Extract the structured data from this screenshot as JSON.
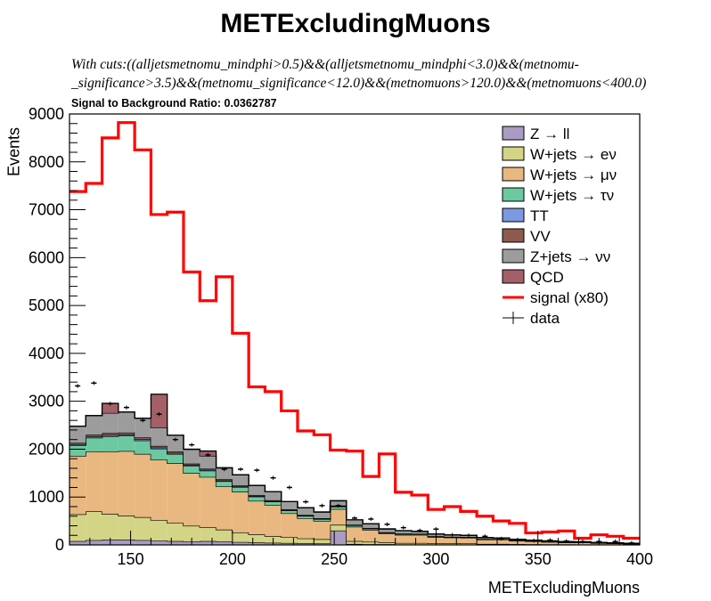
{
  "chart_data": {
    "type": "stacked-histogram",
    "title": "METExcludingMuons",
    "cut_line1": "With cuts:((alljetsmetnomu_mindphi>0.5)&&(alljetsmetnomu_mindphi<3.0)&&(metnomu-",
    "cut_line2": "_significance>3.5)&&(metnomu_significance<12.0)&&(metnomuons>120.0)&&(metnomuons<400.0)",
    "sb_ratio": "Signal to Background Ratio: 0.0362787",
    "xlabel": "METExcludingMuons",
    "ylabel": "Events",
    "xlim": [
      120,
      400
    ],
    "ylim": [
      0,
      9000
    ],
    "yticks": [
      "0",
      "1000",
      "2000",
      "3000",
      "4000",
      "5000",
      "6000",
      "7000",
      "8000",
      "9000"
    ],
    "xticks": [
      "150",
      "200",
      "250",
      "300",
      "350",
      "400"
    ],
    "bin_width": 8,
    "bin_edges": [
      120,
      128,
      136,
      144,
      152,
      160,
      168,
      176,
      184,
      192,
      200,
      208,
      216,
      224,
      232,
      240,
      248,
      256,
      264,
      272,
      280,
      288,
      296,
      304,
      312,
      320,
      328,
      336,
      344,
      352,
      360,
      368,
      376,
      384,
      392,
      400
    ],
    "series": [
      {
        "name": "Z → ll",
        "color": "#a99bc2",
        "values": [
          80,
          100,
          110,
          110,
          100,
          90,
          80,
          70,
          80,
          70,
          60,
          50,
          45,
          40,
          35,
          30,
          300,
          20,
          15,
          15,
          10,
          10,
          8,
          8,
          8,
          6,
          6,
          5,
          4,
          4,
          4,
          3,
          3,
          3,
          2
        ]
      },
      {
        "name": "W+jets → eν",
        "color": "#d3d485",
        "values": [
          560,
          600,
          540,
          500,
          480,
          430,
          380,
          330,
          290,
          250,
          200,
          170,
          140,
          120,
          100,
          90,
          120,
          60,
          50,
          40,
          30,
          30,
          25,
          25,
          22,
          15,
          15,
          12,
          10,
          8,
          7,
          6,
          5,
          5,
          3
        ]
      },
      {
        "name": "W+jets → μν",
        "color": "#e8b880",
        "values": [
          1220,
          1250,
          1300,
          1350,
          1320,
          1260,
          1250,
          1100,
          1050,
          900,
          850,
          700,
          650,
          500,
          420,
          380,
          330,
          300,
          250,
          180,
          170,
          170,
          130,
          120,
          120,
          90,
          90,
          70,
          60,
          50,
          40,
          40,
          30,
          25,
          20
        ]
      },
      {
        "name": "W+jets → τν",
        "color": "#6cc8a0",
        "values": [
          220,
          290,
          320,
          320,
          280,
          230,
          190,
          150,
          130,
          110,
          100,
          90,
          70,
          60,
          50,
          40,
          50,
          30,
          25,
          20,
          18,
          15,
          12,
          10,
          10,
          8,
          7,
          6,
          5,
          4,
          4,
          3,
          3,
          2,
          2
        ]
      },
      {
        "name": "TT",
        "color": "#7b98e0",
        "values": [
          20,
          25,
          25,
          25,
          25,
          22,
          20,
          18,
          16,
          15,
          13,
          12,
          10,
          9,
          8,
          7,
          10,
          5,
          4,
          3,
          3,
          3,
          2,
          2,
          2,
          2,
          1,
          1,
          1,
          1,
          1,
          1,
          1,
          1,
          1
        ]
      },
      {
        "name": "VV",
        "color": "#8e5a4e",
        "values": [
          30,
          35,
          40,
          40,
          40,
          35,
          30,
          30,
          25,
          25,
          20,
          20,
          18,
          15,
          12,
          10,
          12,
          8,
          8,
          6,
          6,
          5,
          5,
          4,
          4,
          3,
          3,
          3,
          2,
          2,
          2,
          2,
          1,
          1,
          1
        ]
      },
      {
        "name": "Z+jets → νν",
        "color": "#9c9c9c",
        "values": [
          350,
          400,
          420,
          430,
          400,
          380,
          340,
          300,
          270,
          240,
          220,
          200,
          180,
          160,
          150,
          130,
          100,
          100,
          90,
          70,
          60,
          50,
          45,
          40,
          35,
          30,
          25,
          20,
          18,
          15,
          12,
          10,
          8,
          7,
          6
        ]
      },
      {
        "name": "QCD",
        "color": "#a36069",
        "values": [
          0,
          0,
          200,
          0,
          0,
          700,
          0,
          0,
          100,
          0,
          0,
          0,
          0,
          0,
          0,
          0,
          0,
          0,
          0,
          0,
          0,
          0,
          0,
          0,
          0,
          0,
          0,
          0,
          0,
          0,
          0,
          0,
          0,
          0,
          0
        ]
      }
    ],
    "signal": {
      "name": "signal (x80)",
      "color": "#ff0000",
      "values": [
        7380,
        7550,
        8500,
        8820,
        8250,
        6900,
        6950,
        5700,
        5100,
        5600,
        4420,
        3300,
        3200,
        2800,
        2380,
        2300,
        1980,
        1960,
        1430,
        1900,
        1100,
        1040,
        740,
        800,
        700,
        600,
        500,
        450,
        250,
        270,
        290,
        140,
        210,
        180,
        140
      ]
    },
    "data": {
      "name": "data",
      "values": [
        3320,
        3380,
        2950,
        2870,
        2600,
        2730,
        2200,
        2090,
        1880,
        1580,
        1580,
        1560,
        1400,
        1200,
        900,
        820,
        820,
        560,
        540,
        430,
        360,
        300,
        330,
        210,
        200,
        180,
        130,
        100,
        90,
        100,
        80,
        70,
        70,
        70,
        40
      ]
    }
  }
}
